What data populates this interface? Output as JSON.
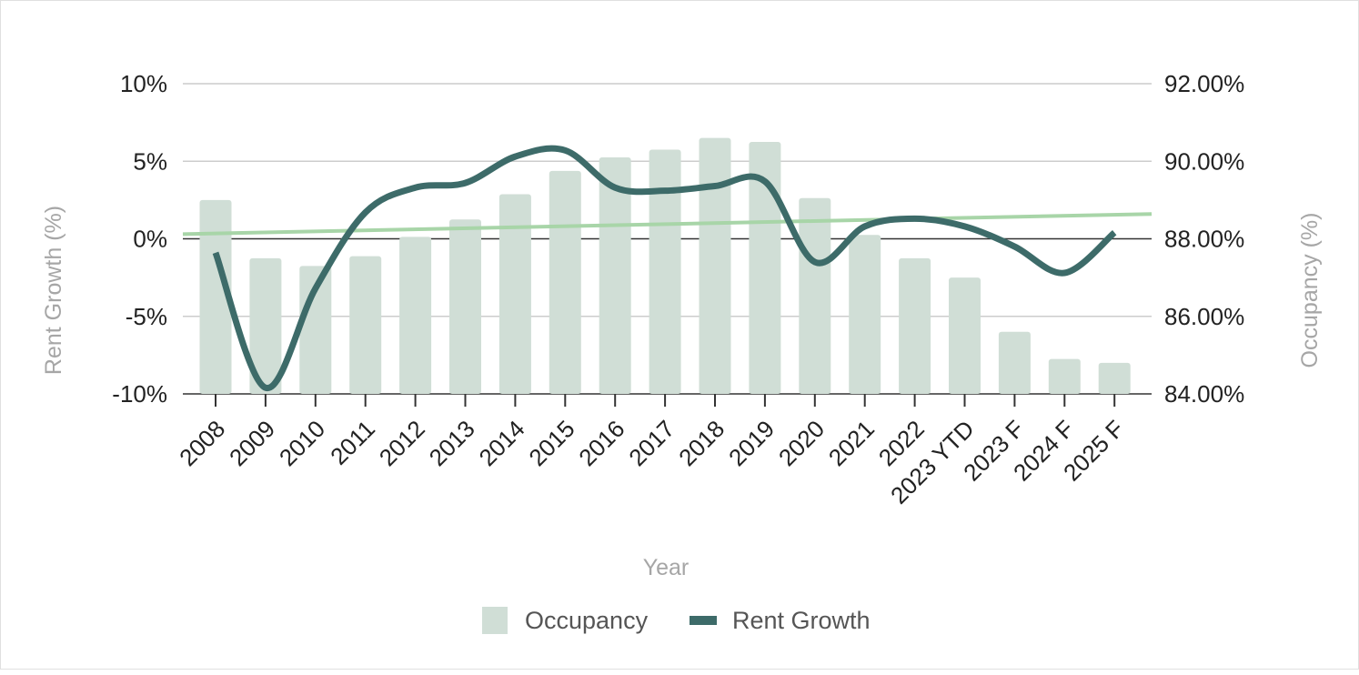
{
  "chart_data": {
    "type": "bar",
    "categories": [
      "2008",
      "2009",
      "2010",
      "2011",
      "2012",
      "2013",
      "2014",
      "2015",
      "2016",
      "2017",
      "2018",
      "2019",
      "2020",
      "2021",
      "2022",
      "2023 YTD",
      "2023 F",
      "2024 F",
      "2025 F"
    ],
    "series": [
      {
        "name": "Occupancy",
        "type": "bar",
        "axis": "right",
        "values": [
          89.0,
          87.5,
          87.3,
          87.55,
          88.05,
          88.5,
          89.15,
          89.75,
          90.1,
          90.3,
          90.6,
          90.5,
          89.05,
          88.1,
          87.5,
          87.0,
          85.6,
          84.9,
          84.8
        ]
      },
      {
        "name": "Rent Growth",
        "type": "line",
        "axis": "left",
        "values": [
          -0.9,
          -9.6,
          -3.2,
          1.7,
          3.3,
          3.6,
          5.3,
          5.7,
          3.3,
          3.1,
          3.4,
          3.7,
          -1.5,
          0.8,
          1.3,
          0.8,
          -0.5,
          -2.2,
          0.4
        ]
      }
    ],
    "trendline": {
      "series": "Occupancy",
      "color": "#a8d5a8",
      "start": 0.3,
      "end": 1.6,
      "axis": "left"
    },
    "xlabel": "Year",
    "ylabel_left": "Rent Growth (%)",
    "ylabel_right": "Occupancy (%)",
    "ylim_left": [
      -10,
      10
    ],
    "ylim_right": [
      84,
      92
    ],
    "yticks_left": [
      "10%",
      "5%",
      "0%",
      "-5%",
      "-10%"
    ],
    "yticks_right": [
      "92.00%",
      "90.00%",
      "88.00%",
      "86.00%",
      "84.00%"
    ],
    "grid": true,
    "legend": "bottom",
    "colors": {
      "bar": "#d0ded6",
      "line": "#3d6b69",
      "trend": "#a8d5a8",
      "grid": "#cccccc",
      "zero": "#333333"
    }
  }
}
